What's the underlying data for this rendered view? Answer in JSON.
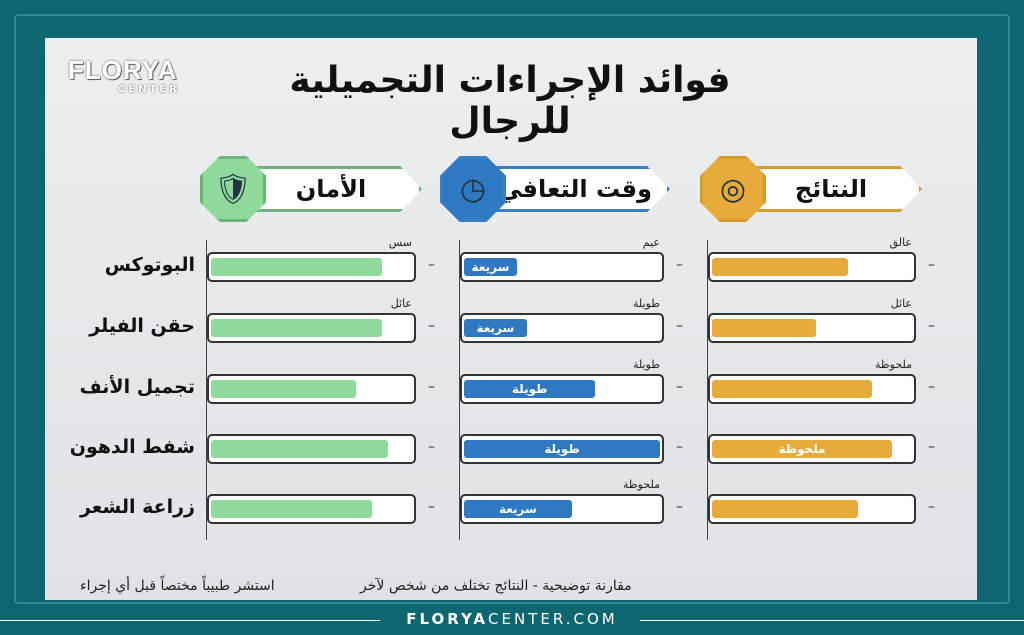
{
  "brand": {
    "name": "FLORYA",
    "sub": "CENTER",
    "site_bold": "FLORYA",
    "site_rest": "CENTER.COM"
  },
  "title": "فوائد الإجراءات التجميلية للرجال",
  "columns": [
    {
      "label": "الأمان",
      "icon": "shield-check-icon",
      "color": "#8fd99a",
      "border": "#6fb27a",
      "top_labels": [
        "سس",
        "عائل",
        "",
        "",
        ""
      ],
      "values": [
        0.85,
        0.85,
        0.72,
        0.88,
        0.8
      ],
      "bar_labels": [
        "",
        "",
        "",
        "",
        ""
      ]
    },
    {
      "label": "وقت التعافي",
      "icon": "clock-calendar-icon",
      "color": "#2f78c2",
      "border": "#3a7fc4",
      "top_labels": [
        "عيم",
        "طويلة",
        "طويلة",
        "",
        "ملحوظة"
      ],
      "values": [
        0.27,
        0.32,
        0.67,
        1.0,
        0.55
      ],
      "bar_labels": [
        "سريعة",
        "سريعة",
        "طويلة",
        "طويلة",
        "سريعة"
      ]
    },
    {
      "label": "النتائج",
      "icon": "target-star-icon",
      "color": "#e7ab3c",
      "border": "#d69b2e",
      "top_labels": [
        "عالق",
        "عائل",
        "ملحوظة",
        "",
        ""
      ],
      "values": [
        0.68,
        0.52,
        0.8,
        0.9,
        0.73
      ],
      "bar_labels": [
        "",
        "",
        "",
        "ملحوظة",
        ""
      ]
    }
  ],
  "rows": [
    "البوتوكس",
    "حقن الفيلر",
    "تجميل الأنف",
    "شفط الدهون",
    "زراعة الشعر"
  ],
  "footer": {
    "left": "استشر طبيباً مختصاً قبل أي إجراء",
    "right": "مقارنة توضيحية - النتائج تختلف من شخص لآخر"
  }
}
